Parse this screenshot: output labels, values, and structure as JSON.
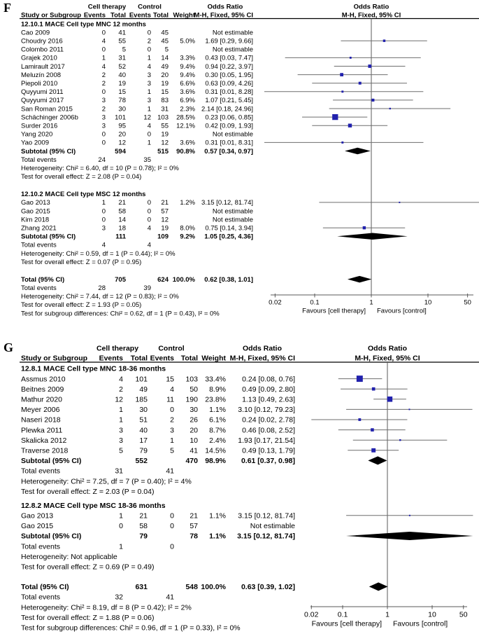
{
  "figure_name": "forest-plot-figure",
  "colors": {
    "marker": "#2121ad",
    "ci_line": "#6e6e6e",
    "diamond": "#000000",
    "rule": "#000000",
    "axis": "#595959",
    "text": "#000000"
  },
  "chart_data": [
    {
      "type": "forest",
      "label": "F",
      "header": {
        "group1": "Cell therapy",
        "group2": "Control",
        "col_study": "Study or Subgroup",
        "col_events": "Events",
        "col_total": "Total",
        "col_weight": "Weight",
        "or_title": "Odds Ratio",
        "or_sub": "M-H, Fixed, 95% CI"
      },
      "sections": [
        {
          "title": "12.10.1 MACE Cell type MNC 12 months",
          "studies": [
            {
              "study": "Cao 2009",
              "e1": "0",
              "t1": "41",
              "e2": "0",
              "t2": "45",
              "weight": "",
              "ci": "Not estimable"
            },
            {
              "study": "Choudry 2016",
              "e1": "4",
              "t1": "55",
              "e2": "2",
              "t2": "45",
              "weight": "5.0%",
              "ci": "1.69 [0.29, 9.66]",
              "or": 1.69,
              "lo": 0.29,
              "hi": 9.66,
              "w": 5.0
            },
            {
              "study": "Colombo 2011",
              "e1": "0",
              "t1": "5",
              "e2": "0",
              "t2": "5",
              "weight": "",
              "ci": "Not estimable"
            },
            {
              "study": "Grajek 2010",
              "e1": "1",
              "t1": "31",
              "e2": "1",
              "t2": "14",
              "weight": "3.3%",
              "ci": "0.43 [0.03, 7.47]",
              "or": 0.43,
              "lo": 0.03,
              "hi": 7.47,
              "w": 3.3
            },
            {
              "study": "Lamirault 2017",
              "e1": "4",
              "t1": "52",
              "e2": "4",
              "t2": "49",
              "weight": "9.4%",
              "ci": "0.94 [0.22, 3.97]",
              "or": 0.94,
              "lo": 0.22,
              "hi": 3.97,
              "w": 9.4
            },
            {
              "study": "Meluzín 2008",
              "e1": "2",
              "t1": "40",
              "e2": "3",
              "t2": "20",
              "weight": "9.4%",
              "ci": "0.30 [0.05, 1.95]",
              "or": 0.3,
              "lo": 0.05,
              "hi": 1.95,
              "w": 9.4
            },
            {
              "study": "Piepoli 2010",
              "e1": "2",
              "t1": "19",
              "e2": "3",
              "t2": "19",
              "weight": "6.6%",
              "ci": "0.63 [0.09, 4.26]",
              "or": 0.63,
              "lo": 0.09,
              "hi": 4.26,
              "w": 6.6
            },
            {
              "study": "Quyyumi 2011",
              "e1": "0",
              "t1": "15",
              "e2": "1",
              "t2": "15",
              "weight": "3.6%",
              "ci": "0.31 [0.01, 8.28]",
              "or": 0.31,
              "lo": 0.01,
              "hi": 8.28,
              "w": 3.6
            },
            {
              "study": "Quyyumi 2017",
              "e1": "3",
              "t1": "78",
              "e2": "3",
              "t2": "83",
              "weight": "6.9%",
              "ci": "1.07 [0.21, 5.45]",
              "or": 1.07,
              "lo": 0.21,
              "hi": 5.45,
              "w": 6.9
            },
            {
              "study": "San Roman 2015",
              "e1": "2",
              "t1": "30",
              "e2": "1",
              "t2": "31",
              "weight": "2.3%",
              "ci": "2.14 [0.18, 24.96]",
              "or": 2.14,
              "lo": 0.18,
              "hi": 24.96,
              "w": 2.3
            },
            {
              "study": "Schächinger 2006b",
              "e1": "3",
              "t1": "101",
              "e2": "12",
              "t2": "103",
              "weight": "28.5%",
              "ci": "0.23 [0.06, 0.85]",
              "or": 0.23,
              "lo": 0.06,
              "hi": 0.85,
              "w": 28.5
            },
            {
              "study": "Surder 2016",
              "e1": "3",
              "t1": "95",
              "e2": "4",
              "t2": "55",
              "weight": "12.1%",
              "ci": "0.42 [0.09, 1.93]",
              "or": 0.42,
              "lo": 0.09,
              "hi": 1.93,
              "w": 12.1
            },
            {
              "study": "Yang 2020",
              "e1": "0",
              "t1": "20",
              "e2": "0",
              "t2": "19",
              "weight": "",
              "ci": "Not estimable"
            },
            {
              "study": "Yao 2009",
              "e1": "0",
              "t1": "12",
              "e2": "1",
              "t2": "12",
              "weight": "3.6%",
              "ci": "0.31 [0.01, 8.31]",
              "or": 0.31,
              "lo": 0.01,
              "hi": 8.31,
              "w": 3.6
            }
          ],
          "subtotal": {
            "label": "Subtotal (95% CI)",
            "t1": "594",
            "t2": "515",
            "weight": "90.8%",
            "ci": "0.57 [0.34, 0.97]",
            "or": 0.57,
            "lo": 0.34,
            "hi": 0.97
          },
          "total_events": {
            "label": "Total events",
            "e1": "24",
            "e2": "35"
          },
          "footnotes": [
            "Heterogeneity: Chi² = 6.40, df = 10 (P = 0.78); I² = 0%",
            "Test for overall effect: Z = 2.08 (P = 0.04)"
          ]
        },
        {
          "title": "12.10.2 MACE Cell type MSC 12 months",
          "studies": [
            {
              "study": "Gao 2013",
              "e1": "1",
              "t1": "21",
              "e2": "0",
              "t2": "21",
              "weight": "1.2%",
              "ci": "3.15 [0.12, 81.74]",
              "or": 3.15,
              "lo": 0.12,
              "hi": 81.74,
              "w": 1.2
            },
            {
              "study": "Gao 2015",
              "e1": "0",
              "t1": "58",
              "e2": "0",
              "t2": "57",
              "weight": "",
              "ci": "Not estimable"
            },
            {
              "study": "Kim 2018",
              "e1": "0",
              "t1": "14",
              "e2": "0",
              "t2": "12",
              "weight": "",
              "ci": "Not estimable"
            },
            {
              "study": "Zhang 2021",
              "e1": "3",
              "t1": "18",
              "e2": "4",
              "t2": "19",
              "weight": "8.0%",
              "ci": "0.75 [0.14, 3.94]",
              "or": 0.75,
              "lo": 0.14,
              "hi": 3.94,
              "w": 8.0
            }
          ],
          "subtotal": {
            "label": "Subtotal (95% CI)",
            "t1": "111",
            "t2": "109",
            "weight": "9.2%",
            "ci": "1.05 [0.25, 4.36]",
            "or": 1.05,
            "lo": 0.25,
            "hi": 4.36
          },
          "total_events": {
            "label": "Total events",
            "e1": "4",
            "e2": "4"
          },
          "footnotes": [
            "Heterogeneity: Chi² = 0.59, df = 1 (P = 0.44); I² = 0%",
            "Test for overall effect: Z = 0.07 (P = 0.95)"
          ]
        }
      ],
      "total": {
        "label": "Total (95% CI)",
        "t1": "705",
        "t2": "624",
        "weight": "100.0%",
        "ci": "0.62 [0.38, 1.01]",
        "or": 0.62,
        "lo": 0.38,
        "hi": 1.01
      },
      "total_events": {
        "label": "Total events",
        "e1": "28",
        "e2": "39"
      },
      "footnotes": [
        "Heterogeneity: Chi² = 7.44, df = 12 (P = 0.83); I² = 0%",
        "Test for overall effect: Z = 1.93 (P = 0.05)",
        "Test for subgroup differences: Chi² = 0.62, df = 1 (P = 0.43), I² = 0%"
      ],
      "axis": {
        "scale": "log",
        "ticks": [
          "0.02",
          "0.1",
          "1",
          "10",
          "50"
        ],
        "favours_left": "Favours [cell therapy]",
        "favours_right": "Favours [control]"
      }
    },
    {
      "type": "forest",
      "label": "G",
      "header": {
        "group1": "Cell therapy",
        "group2": "Control",
        "col_study": "Study or Subgroup",
        "col_events": "Events",
        "col_total": "Total",
        "col_weight": "Weight",
        "or_title": "Odds Ratio",
        "or_sub": "M-H, Fixed, 95% CI"
      },
      "sections": [
        {
          "title": "12.8.1 MACE Cell type MNC 18-36 months",
          "studies": [
            {
              "study": "Assmus 2010",
              "e1": "4",
              "t1": "101",
              "e2": "15",
              "t2": "103",
              "weight": "33.4%",
              "ci": "0.24 [0.08, 0.76]",
              "or": 0.24,
              "lo": 0.08,
              "hi": 0.76,
              "w": 33.4
            },
            {
              "study": "Beitnes 2009",
              "e1": "2",
              "t1": "49",
              "e2": "4",
              "t2": "50",
              "weight": "8.9%",
              "ci": "0.49 [0.09, 2.80]",
              "or": 0.49,
              "lo": 0.09,
              "hi": 2.8,
              "w": 8.9
            },
            {
              "study": "Mathur 2020",
              "e1": "12",
              "t1": "185",
              "e2": "11",
              "t2": "190",
              "weight": "23.8%",
              "ci": "1.13 [0.49, 2.63]",
              "or": 1.13,
              "lo": 0.49,
              "hi": 2.63,
              "w": 23.8
            },
            {
              "study": "Meyer 2006",
              "e1": "1",
              "t1": "30",
              "e2": "0",
              "t2": "30",
              "weight": "1.1%",
              "ci": "3.10 [0.12, 79.23]",
              "or": 3.1,
              "lo": 0.12,
              "hi": 79.23,
              "w": 1.1
            },
            {
              "study": "Naseri 2018",
              "e1": "1",
              "t1": "51",
              "e2": "2",
              "t2": "26",
              "weight": "6.1%",
              "ci": "0.24 [0.02, 2.78]",
              "or": 0.24,
              "lo": 0.02,
              "hi": 2.78,
              "w": 6.1
            },
            {
              "study": "Plewka 2011",
              "e1": "3",
              "t1": "40",
              "e2": "3",
              "t2": "20",
              "weight": "8.7%",
              "ci": "0.46 [0.08, 2.52]",
              "or": 0.46,
              "lo": 0.08,
              "hi": 2.52,
              "w": 8.7
            },
            {
              "study": "Skalicka 2012",
              "e1": "3",
              "t1": "17",
              "e2": "1",
              "t2": "10",
              "weight": "2.4%",
              "ci": "1.93 [0.17, 21.54]",
              "or": 1.93,
              "lo": 0.17,
              "hi": 21.54,
              "w": 2.4
            },
            {
              "study": "Traverse 2018",
              "e1": "5",
              "t1": "79",
              "e2": "5",
              "t2": "41",
              "weight": "14.5%",
              "ci": "0.49 [0.13, 1.79]",
              "or": 0.49,
              "lo": 0.13,
              "hi": 1.79,
              "w": 14.5
            }
          ],
          "subtotal": {
            "label": "Subtotal (95% CI)",
            "t1": "552",
            "t2": "470",
            "weight": "98.9%",
            "ci": "0.61 [0.37, 0.98]",
            "or": 0.61,
            "lo": 0.37,
            "hi": 0.98
          },
          "total_events": {
            "label": "Total events",
            "e1": "31",
            "e2": "41"
          },
          "footnotes": [
            "Heterogeneity: Chi² = 7.25, df = 7 (P = 0.40); I² = 4%",
            "Test for overall effect: Z = 2.03 (P = 0.04)"
          ]
        },
        {
          "title": "12.8.2 MACE Cell type MSC 18-36 months",
          "studies": [
            {
              "study": "Gao 2013",
              "e1": "1",
              "t1": "21",
              "e2": "0",
              "t2": "21",
              "weight": "1.1%",
              "ci": "3.15 [0.12, 81.74]",
              "or": 3.15,
              "lo": 0.12,
              "hi": 81.74,
              "w": 1.1
            },
            {
              "study": "Gao 2015",
              "e1": "0",
              "t1": "58",
              "e2": "0",
              "t2": "57",
              "weight": "",
              "ci": "Not estimable"
            }
          ],
          "subtotal": {
            "label": "Subtotal (95% CI)",
            "t1": "79",
            "t2": "78",
            "weight": "1.1%",
            "ci": "3.15 [0.12, 81.74]",
            "or": 3.15,
            "lo": 0.12,
            "hi": 81.74
          },
          "total_events": {
            "label": "Total events",
            "e1": "1",
            "e2": "0"
          },
          "footnotes": [
            "Heterogeneity: Not applicable",
            "Test for overall effect: Z = 0.69 (P = 0.49)"
          ]
        }
      ],
      "total": {
        "label": "Total (95% CI)",
        "t1": "631",
        "t2": "548",
        "weight": "100.0%",
        "ci": "0.63 [0.39, 1.02]",
        "or": 0.63,
        "lo": 0.39,
        "hi": 1.02
      },
      "total_events": {
        "label": "Total events",
        "e1": "32",
        "e2": "41"
      },
      "footnotes": [
        "Heterogeneity: Chi² = 8.19, df = 8 (P = 0.42); I² = 2%",
        "Test for overall effect: Z = 1.88 (P = 0.06)",
        "Test for subgroup differences: Chi² = 0.96, df = 1 (P = 0.33), I² = 0%"
      ],
      "axis": {
        "scale": "log",
        "ticks": [
          "0.02",
          "0.1",
          "1",
          "10",
          "50"
        ],
        "favours_left": "Favours [cell therapy]",
        "favours_right": "Favours [control]"
      }
    }
  ]
}
